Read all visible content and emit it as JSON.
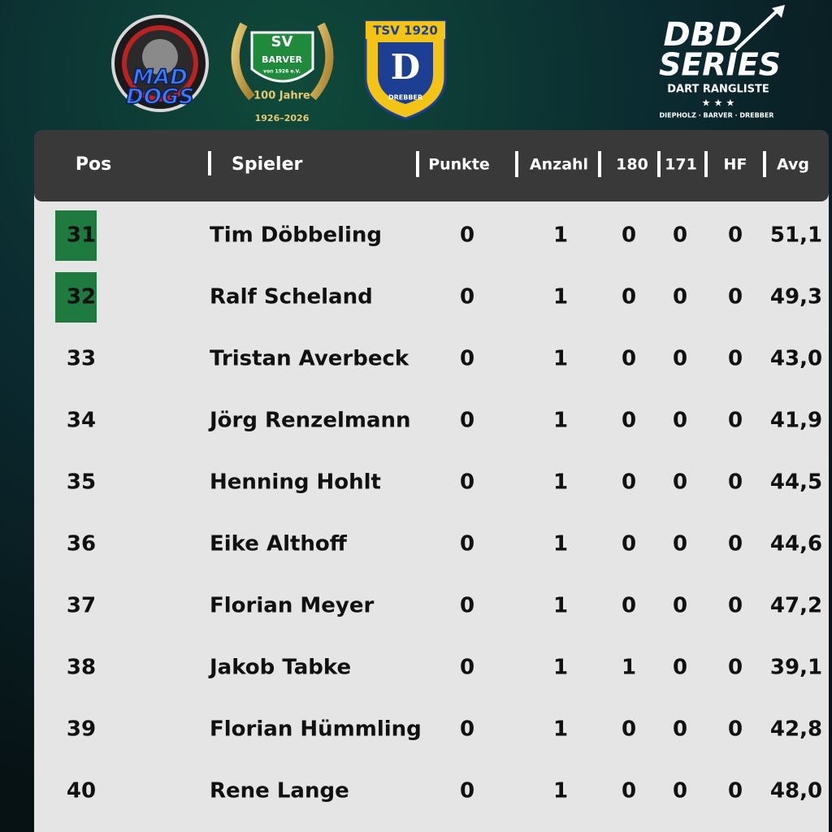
{
  "logos": {
    "maddogs": {
      "line1": "MAD",
      "line2": "DOGS"
    },
    "barver": {
      "initials": "SV",
      "name": "BARVER",
      "since": "von 1926 e.V.",
      "anniversary": "100 Jahre",
      "years": "1926–2026"
    },
    "drebber": {
      "title": "TSV 1920",
      "letter": "D",
      "name": "DREBBER"
    },
    "dbd": {
      "line1": "DBD",
      "line2": "SERIES",
      "subtitle": "DART RANGLISTE",
      "stars": "★ ★ ★",
      "places": "DIEPHOLZ · BARVER · DREBBER"
    }
  },
  "table": {
    "columns": [
      "Pos",
      "Spieler",
      "Punkte",
      "Anzahl",
      "180",
      "171",
      "HF",
      "Avg"
    ],
    "rows": [
      [
        31,
        "Tim Döbbeling",
        0,
        1,
        0,
        0,
        0,
        "51,1"
      ],
      [
        32,
        "Ralf Scheland",
        0,
        1,
        0,
        0,
        0,
        "49,3"
      ],
      [
        33,
        "Tristan Averbeck",
        0,
        1,
        0,
        0,
        0,
        "43,0"
      ],
      [
        34,
        "Jörg Renzelmann",
        0,
        1,
        0,
        0,
        0,
        "41,9"
      ],
      [
        35,
        "Henning Hohlt",
        0,
        1,
        0,
        0,
        0,
        "44,5"
      ],
      [
        36,
        "Eike Althoff",
        0,
        1,
        0,
        0,
        0,
        "44,6"
      ],
      [
        37,
        "Florian Meyer",
        0,
        1,
        0,
        0,
        0,
        "47,2"
      ],
      [
        38,
        "Jakob Tabke",
        0,
        1,
        1,
        0,
        0,
        "39,1"
      ],
      [
        39,
        "Florian Hümmling",
        0,
        1,
        0,
        0,
        0,
        "42,8"
      ],
      [
        40,
        "Rene Lange",
        0,
        1,
        0,
        0,
        0,
        "48,0"
      ]
    ]
  }
}
